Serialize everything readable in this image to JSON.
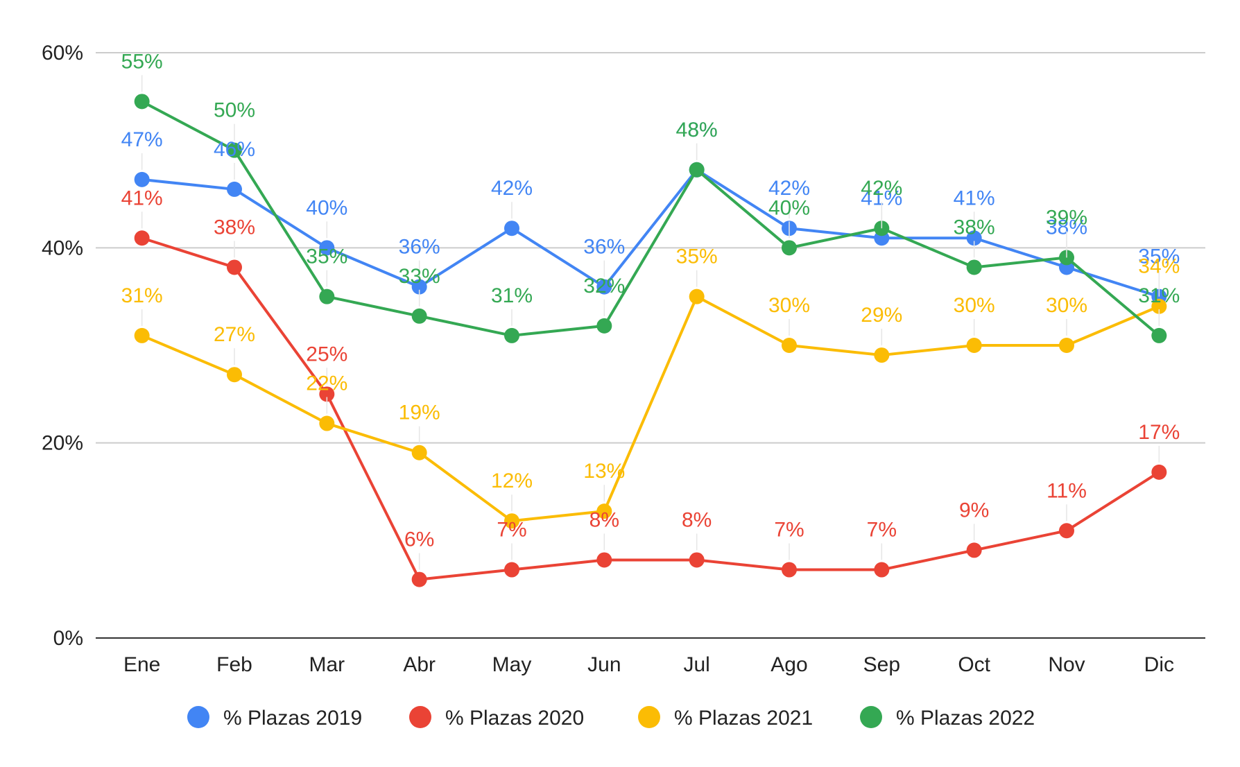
{
  "chart_data": {
    "type": "line",
    "title": "",
    "xlabel": "",
    "ylabel": "",
    "categories": [
      "Ene",
      "Feb",
      "Mar",
      "Abr",
      "May",
      "Jun",
      "Jul",
      "Ago",
      "Sep",
      "Oct",
      "Nov",
      "Dic"
    ],
    "ylim": [
      0,
      60
    ],
    "y_ticks": [
      "0%",
      "20%",
      "40%",
      "60%"
    ],
    "y_tick_values": [
      0,
      20,
      40,
      60
    ],
    "grid": true,
    "legend_position": "bottom",
    "series": [
      {
        "name": "% Plazas 2019",
        "color": "#4285F4",
        "values": [
          47,
          46,
          40,
          36,
          42,
          36,
          48,
          42,
          41,
          41,
          38,
          35
        ],
        "labels": [
          "47%",
          "46%",
          "40%",
          "36%",
          "42%",
          "36%",
          "48%",
          "42%",
          "41%",
          "41%",
          "38%",
          "35%"
        ]
      },
      {
        "name": "% Plazas 2020",
        "color": "#EA4335",
        "values": [
          41,
          38,
          25,
          6,
          7,
          8,
          8,
          7,
          7,
          9,
          11,
          17
        ],
        "labels": [
          "41%",
          "38%",
          "25%",
          "6%",
          "7%",
          "8%",
          "8%",
          "7%",
          "7%",
          "9%",
          "11%",
          "17%"
        ]
      },
      {
        "name": "% Plazas 2021",
        "color": "#FBBC04",
        "values": [
          31,
          27,
          22,
          19,
          12,
          13,
          35,
          30,
          29,
          30,
          30,
          34
        ],
        "labels": [
          "31%",
          "27%",
          "22%",
          "19%",
          "12%",
          "13%",
          "35%",
          "30%",
          "29%",
          "30%",
          "30%",
          "34%"
        ]
      },
      {
        "name": "% Plazas 2022",
        "color": "#34A853",
        "values": [
          55,
          50,
          35,
          33,
          31,
          32,
          48,
          40,
          42,
          38,
          39,
          31
        ],
        "labels": [
          "55%",
          "50%",
          "35%",
          "33%",
          "31%",
          "32%",
          "48%",
          "40%",
          "42%",
          "38%",
          "39%",
          "31%"
        ]
      }
    ]
  }
}
